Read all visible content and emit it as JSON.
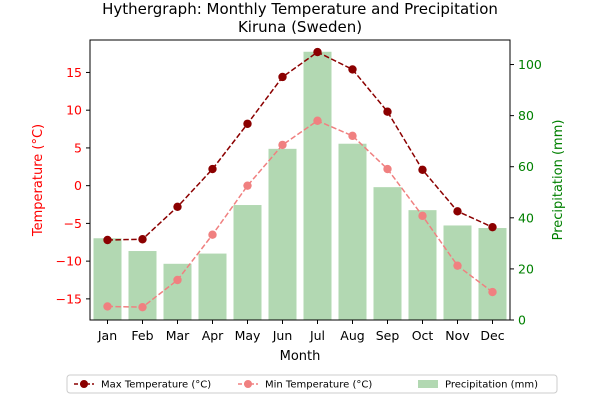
{
  "chart_data": {
    "type": "bar+line",
    "title": "Hythergraph: Monthly Temperature and Precipitation",
    "subtitle": "Kiruna (Sweden)",
    "xlabel": "Month",
    "ylabel_left": "Temperature (°C)",
    "ylabel_right": "Precipitation (mm)",
    "categories": [
      "Jan",
      "Feb",
      "Mar",
      "Apr",
      "May",
      "Jun",
      "Jul",
      "Aug",
      "Sep",
      "Oct",
      "Nov",
      "Dec"
    ],
    "ylim_left": [
      -17.8,
      19.3
    ],
    "ylim_right": [
      0,
      109.6
    ],
    "yticks_left": [
      -15,
      -10,
      -5,
      0,
      5,
      10,
      15
    ],
    "yticks_right": [
      0,
      20,
      40,
      60,
      80,
      100
    ],
    "grid": false,
    "legend_position": "bottom, outside plot",
    "series": [
      {
        "name": "Max Temperature (°C)",
        "kind": "line",
        "axis": "left",
        "color": "#8b0000",
        "values": [
          -7.2,
          -7.1,
          -2.8,
          2.2,
          8.2,
          14.4,
          17.7,
          15.4,
          9.8,
          2.1,
          -3.4,
          -5.5
        ]
      },
      {
        "name": "Min Temperature (°C)",
        "kind": "line",
        "axis": "left",
        "color": "#f08080",
        "values": [
          -16.0,
          -16.1,
          -12.5,
          -6.5,
          0.0,
          5.4,
          8.6,
          6.6,
          2.2,
          -4.0,
          -10.6,
          -14.1
        ]
      },
      {
        "name": "Precipitation (mm)",
        "kind": "bar",
        "axis": "right",
        "color": "#b2d8b2",
        "values": [
          32,
          27,
          22,
          26,
          45,
          67,
          105,
          69,
          52,
          43,
          37,
          36
        ]
      }
    ],
    "colors": {
      "left_axis": "#ff0000",
      "right_axis": "#008000"
    }
  }
}
